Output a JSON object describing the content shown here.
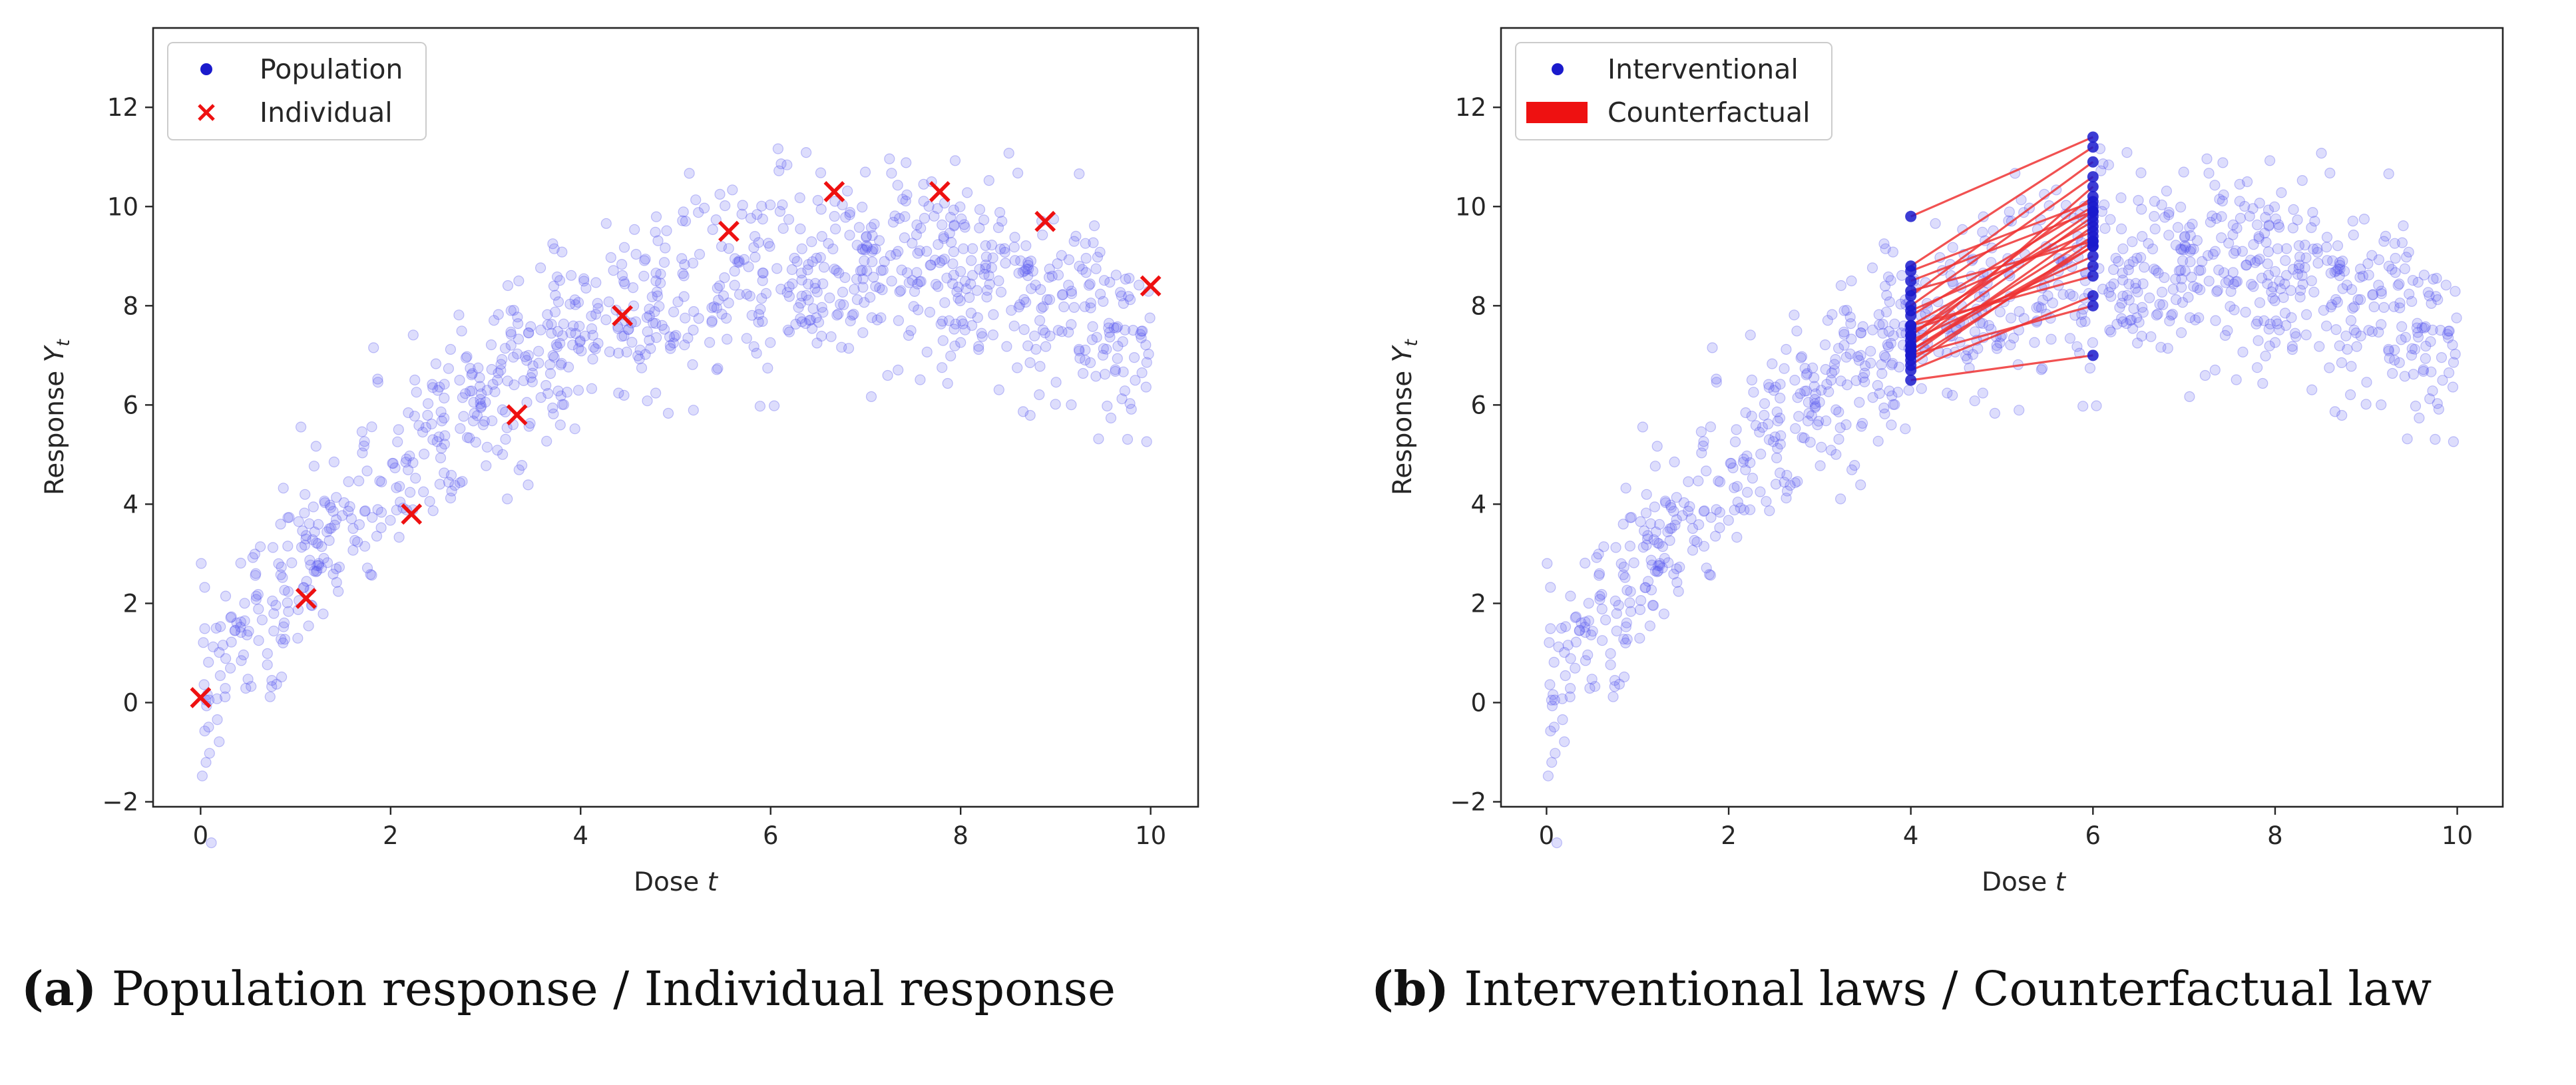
{
  "colors": {
    "population_points": "#5555ee",
    "interventional_points": "#1a1acc",
    "individual_marker": "#ee1111",
    "counterfactual_lines": "#ee3333"
  },
  "chart_data": [
    {
      "type": "scatter",
      "xlabel": "Dose",
      "xlabel_var": "t",
      "ylabel": "Response",
      "ylabel_var": "Y",
      "ylabel_sub": "t",
      "xlim": [
        -0.5,
        10.5
      ],
      "ylim": [
        -2.1,
        13.6
      ],
      "xticks": [
        0,
        2,
        4,
        6,
        8,
        10
      ],
      "yticks": [
        -2,
        0,
        2,
        4,
        6,
        8,
        10,
        12
      ],
      "grid": false,
      "legend_position": "top-left",
      "legend": [
        {
          "label": "Population",
          "marker": "dot"
        },
        {
          "label": "Individual",
          "marker": "x"
        }
      ],
      "population_scatter": {
        "count": 1000,
        "x_range": [
          0,
          10
        ],
        "note": "noisy cloud around a concave response curve, mean rising from about 0 at t=0 to about 10 at t=7 then dipping to about 8 at t=10"
      },
      "series": [
        {
          "name": "Individual",
          "x": [
            0,
            1.11,
            2.22,
            3.33,
            4.44,
            5.56,
            6.67,
            7.78,
            8.89,
            10
          ],
          "y": [
            0.1,
            2.1,
            3.8,
            5.8,
            7.8,
            9.5,
            10.3,
            10.3,
            9.7,
            8.4
          ]
        }
      ],
      "caption_label": "(a)",
      "caption_text": "Population response / Individual response"
    },
    {
      "type": "scatter",
      "xlabel": "Dose",
      "xlabel_var": "t",
      "ylabel": "Response",
      "ylabel_var": "Y",
      "ylabel_sub": "t",
      "xlim": [
        -0.5,
        10.5
      ],
      "ylim": [
        -2.1,
        13.6
      ],
      "xticks": [
        0,
        2,
        4,
        6,
        8,
        10
      ],
      "yticks": [
        -2,
        0,
        2,
        4,
        6,
        8,
        10,
        12
      ],
      "grid": false,
      "legend_position": "top-left",
      "legend": [
        {
          "label": "Interventional",
          "marker": "dot"
        },
        {
          "label": "Counterfactual",
          "marker": "patch"
        }
      ],
      "population_scatter": {
        "count": 1000,
        "x_range": [
          0,
          10
        ],
        "note": "same noisy cloud as panel (a)"
      },
      "interventional": {
        "t0": 4,
        "t1": 6,
        "pairs": [
          [
            6.5,
            7.0
          ],
          [
            6.7,
            8.2
          ],
          [
            6.9,
            9.2
          ],
          [
            7.0,
            9.6
          ],
          [
            7.1,
            9.4
          ],
          [
            7.2,
            9.8
          ],
          [
            7.2,
            10.4
          ],
          [
            7.3,
            9.0
          ],
          [
            7.4,
            9.9
          ],
          [
            7.5,
            8.8
          ],
          [
            7.6,
            9.7
          ],
          [
            7.8,
            10.0
          ],
          [
            7.9,
            9.5
          ],
          [
            8.0,
            10.6
          ],
          [
            8.3,
            9.3
          ],
          [
            8.5,
            9.9
          ],
          [
            8.7,
            10.1
          ],
          [
            8.8,
            11.2
          ],
          [
            9.8,
            11.4
          ],
          [
            7.0,
            8.0
          ],
          [
            6.8,
            9.3
          ],
          [
            7.6,
            8.6
          ],
          [
            8.2,
            10.9
          ],
          [
            7.1,
            9.2
          ],
          [
            7.4,
            10.2
          ]
        ]
      },
      "caption_label": "(b)",
      "caption_text": "Interventional laws / Counterfactual law"
    }
  ]
}
